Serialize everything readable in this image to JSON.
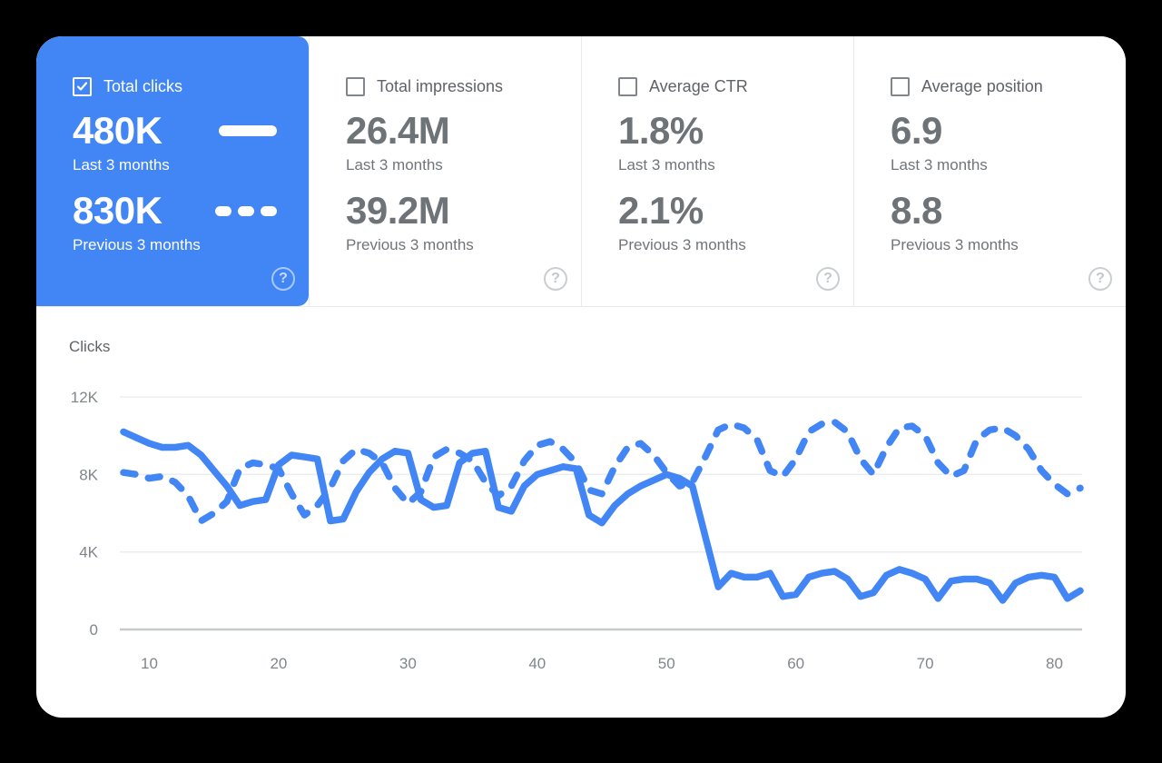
{
  "colors": {
    "accent": "#4285f4",
    "selected_card_bg": "#4285f4",
    "selected_card_text": "#ffffff",
    "label_gray": "#5f6368",
    "value_gray": "#6e7378",
    "tick_gray": "#80868b",
    "grid_line": "#ebedef",
    "zero_axis_line": "#c7cacd",
    "divider": "#e8eaed",
    "chart_line": "#4285f4"
  },
  "icons": {
    "help": "?"
  },
  "cards": [
    {
      "metric": "total-clicks",
      "label": "Total clicks",
      "checked": true,
      "selected": true,
      "value_current": "480K",
      "caption_current": "Last 3 months",
      "value_previous": "830K",
      "caption_previous": "Previous 3 months"
    },
    {
      "metric": "total-impressions",
      "label": "Total impressions",
      "checked": false,
      "selected": false,
      "value_current": "26.4M",
      "caption_current": "Last 3 months",
      "value_previous": "39.2M",
      "caption_previous": "Previous 3 months"
    },
    {
      "metric": "average-ctr",
      "label": "Average CTR",
      "checked": false,
      "selected": false,
      "value_current": "1.8%",
      "caption_current": "Last 3 months",
      "value_previous": "2.1%",
      "caption_previous": "Previous 3 months"
    },
    {
      "metric": "average-position",
      "label": "Average position",
      "checked": false,
      "selected": false,
      "value_current": "6.9",
      "caption_current": "Last 3 months",
      "value_previous": "8.8",
      "caption_previous": "Previous 3 months"
    }
  ],
  "chart_data": {
    "type": "line",
    "title": "Clicks",
    "xlabel": "",
    "ylabel": "Clicks",
    "xlim": [
      8,
      82
    ],
    "ylim": [
      0,
      12000
    ],
    "grid": true,
    "legend_position": "none (line styles shown in Total clicks card: solid = last 3 months, dashed = previous 3 months)",
    "xticks": [
      10,
      20,
      30,
      40,
      50,
      60,
      70,
      80
    ],
    "yticks": [
      {
        "value": 0,
        "label": "0"
      },
      {
        "value": 4000,
        "label": "4K"
      },
      {
        "value": 8000,
        "label": "8K"
      },
      {
        "value": 12000,
        "label": "12K"
      }
    ],
    "x": [
      8,
      9,
      10,
      11,
      12,
      13,
      14,
      15,
      16,
      17,
      18,
      19,
      20,
      21,
      22,
      23,
      24,
      25,
      26,
      27,
      28,
      29,
      30,
      31,
      32,
      33,
      34,
      35,
      36,
      37,
      38,
      39,
      40,
      41,
      42,
      43,
      44,
      45,
      46,
      47,
      48,
      49,
      50,
      51,
      52,
      53,
      54,
      55,
      56,
      57,
      58,
      59,
      60,
      61,
      62,
      63,
      64,
      65,
      66,
      67,
      68,
      69,
      70,
      71,
      72,
      73,
      74,
      75,
      76,
      77,
      78,
      79,
      80,
      81,
      82
    ],
    "series": [
      {
        "name": "Total clicks — Last 3 months",
        "style": "solid",
        "color": "#4285f4",
        "values": [
          10200,
          9900,
          9600,
          9400,
          9400,
          9500,
          9000,
          8200,
          7400,
          6400,
          6600,
          6700,
          8500,
          9000,
          8900,
          8800,
          5600,
          5700,
          7100,
          8100,
          8800,
          9200,
          9100,
          6700,
          6300,
          6400,
          8600,
          9100,
          9200,
          6300,
          6100,
          7400,
          8000,
          8200,
          8400,
          8300,
          5900,
          5500,
          6400,
          7000,
          7400,
          7700,
          8000,
          7800,
          7400,
          4800,
          2200,
          2900,
          2700,
          2700,
          2900,
          1700,
          1800,
          2700,
          2900,
          3000,
          2600,
          1700,
          1900,
          2800,
          3100,
          2900,
          2600,
          1600,
          2500,
          2600,
          2600,
          2400,
          1500,
          2400,
          2700,
          2800,
          2700,
          1600,
          2000
        ]
      },
      {
        "name": "Total clicks — Previous 3 months",
        "style": "dashed",
        "color": "#4285f4",
        "values": [
          8100,
          8000,
          7800,
          7900,
          7600,
          6900,
          5600,
          6000,
          6600,
          8300,
          8600,
          8500,
          8300,
          7000,
          5900,
          6400,
          7300,
          8700,
          9300,
          9100,
          8600,
          7300,
          6500,
          7100,
          8900,
          9300,
          9100,
          8700,
          7600,
          6900,
          7400,
          8700,
          9500,
          9700,
          9300,
          8600,
          7200,
          7000,
          8400,
          9400,
          9600,
          9000,
          8100,
          7400,
          7600,
          8900,
          10300,
          10600,
          10400,
          9800,
          8200,
          7900,
          8800,
          10200,
          10600,
          10700,
          10200,
          8800,
          8000,
          9400,
          10400,
          10500,
          10000,
          8600,
          7900,
          8200,
          9800,
          10300,
          10400,
          10000,
          9300,
          8200,
          7500,
          7000,
          7300
        ]
      }
    ]
  }
}
